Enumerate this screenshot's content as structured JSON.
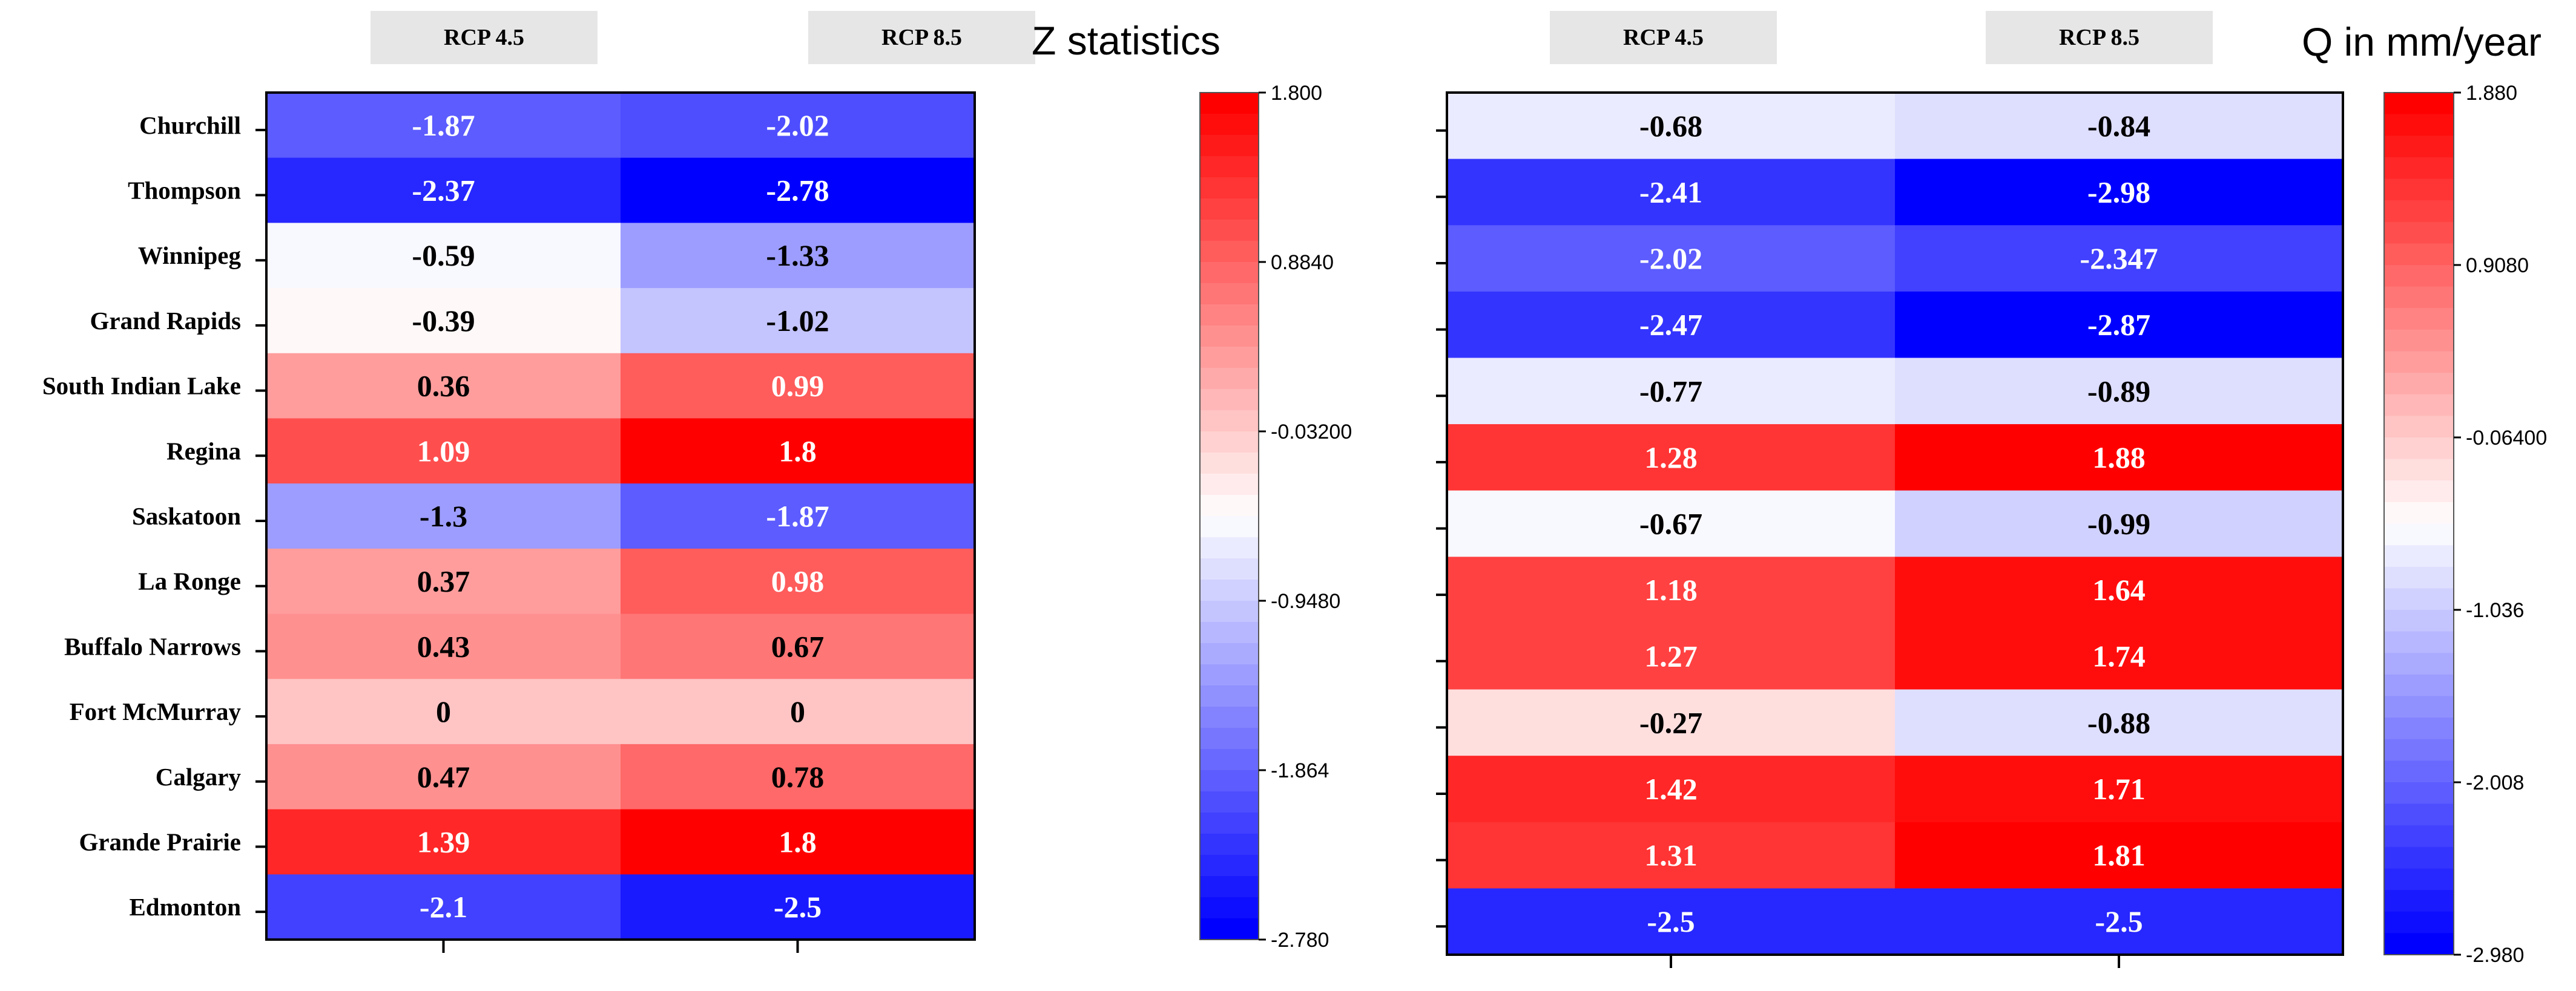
{
  "chart_data": [
    {
      "type": "heatmap",
      "title": "Z statistics",
      "columns": [
        "RCP 4.5",
        "RCP 8.5"
      ],
      "rows": [
        "Churchill",
        "Thompson",
        "Winnipeg",
        "Grand Rapids",
        "South Indian Lake",
        "Regina",
        "Saskatoon",
        "La Ronge",
        "Buffalo Narrows",
        "Fort McMurray",
        "Calgary",
        "Grande Prairie",
        "Edmonton"
      ],
      "values": [
        [
          -1.87,
          -2.02
        ],
        [
          -2.37,
          -2.78
        ],
        [
          -0.59,
          -1.33
        ],
        [
          -0.39,
          -1.02
        ],
        [
          0.36,
          0.99
        ],
        [
          1.09,
          1.8
        ],
        [
          -1.3,
          -1.87
        ],
        [
          0.37,
          0.98
        ],
        [
          0.43,
          0.67
        ],
        [
          0,
          0
        ],
        [
          0.47,
          0.78
        ],
        [
          1.39,
          1.8
        ],
        [
          -2.1,
          -2.5
        ]
      ],
      "labels": [
        [
          "-1.87",
          "-2.02"
        ],
        [
          "-2.37",
          "-2.78"
        ],
        [
          "-0.59",
          "-1.33"
        ],
        [
          "-0.39",
          "-1.02"
        ],
        [
          "0.36",
          "0.99"
        ],
        [
          "1.09",
          "1.8"
        ],
        [
          "-1.3",
          "-1.87"
        ],
        [
          "0.37",
          "0.98"
        ],
        [
          "0.43",
          "0.67"
        ],
        [
          "0",
          "0"
        ],
        [
          "0.47",
          "0.78"
        ],
        [
          "1.39",
          "1.8"
        ],
        [
          "-2.1",
          "-2.5"
        ]
      ],
      "colorbar": {
        "min": -2.78,
        "max": 1.8,
        "ticks": [
          "1.800",
          "0.8840",
          "-0.03200",
          "-0.9480",
          "-1.864",
          "-2.780"
        ]
      },
      "colors": {
        "low": "#0000ff",
        "mid": "#ffffff",
        "high": "#ff0000",
        "header_bg": "#e6e6e6"
      }
    },
    {
      "type": "heatmap",
      "title": "Q in mm/year",
      "columns": [
        "RCP 4.5",
        "RCP 8.5"
      ],
      "values": [
        [
          -0.68,
          -0.84
        ],
        [
          -2.41,
          -2.98
        ],
        [
          -2.02,
          -2.347
        ],
        [
          -2.47,
          -2.87
        ],
        [
          -0.77,
          -0.89
        ],
        [
          1.28,
          1.88
        ],
        [
          -0.67,
          -0.99
        ],
        [
          1.18,
          1.64
        ],
        [
          1.27,
          1.74
        ],
        [
          -0.27,
          -0.88
        ],
        [
          1.42,
          1.71
        ],
        [
          1.31,
          1.81
        ],
        [
          -2.5,
          -2.5
        ]
      ],
      "labels": [
        [
          "-0.68",
          "-0.84"
        ],
        [
          "-2.41",
          "-2.98"
        ],
        [
          "-2.02",
          "-2.347"
        ],
        [
          "-2.47",
          "-2.87"
        ],
        [
          "-0.77",
          "-0.89"
        ],
        [
          "1.28",
          "1.88"
        ],
        [
          "-0.67",
          "-0.99"
        ],
        [
          "1.18",
          "1.64"
        ],
        [
          "1.27",
          "1.74"
        ],
        [
          "-0.27",
          "-0.88"
        ],
        [
          "1.42",
          "1.71"
        ],
        [
          "1.31",
          "1.81"
        ],
        [
          "-2.5",
          "-2.5"
        ]
      ],
      "colorbar": {
        "min": -2.98,
        "max": 1.88,
        "ticks": [
          "1.880",
          "0.9080",
          "-0.06400",
          "-1.036",
          "-2.008",
          "-2.980"
        ]
      },
      "colors": {
        "low": "#0000ff",
        "mid": "#ffffff",
        "high": "#ff0000",
        "header_bg": "#e6e6e6"
      }
    }
  ]
}
